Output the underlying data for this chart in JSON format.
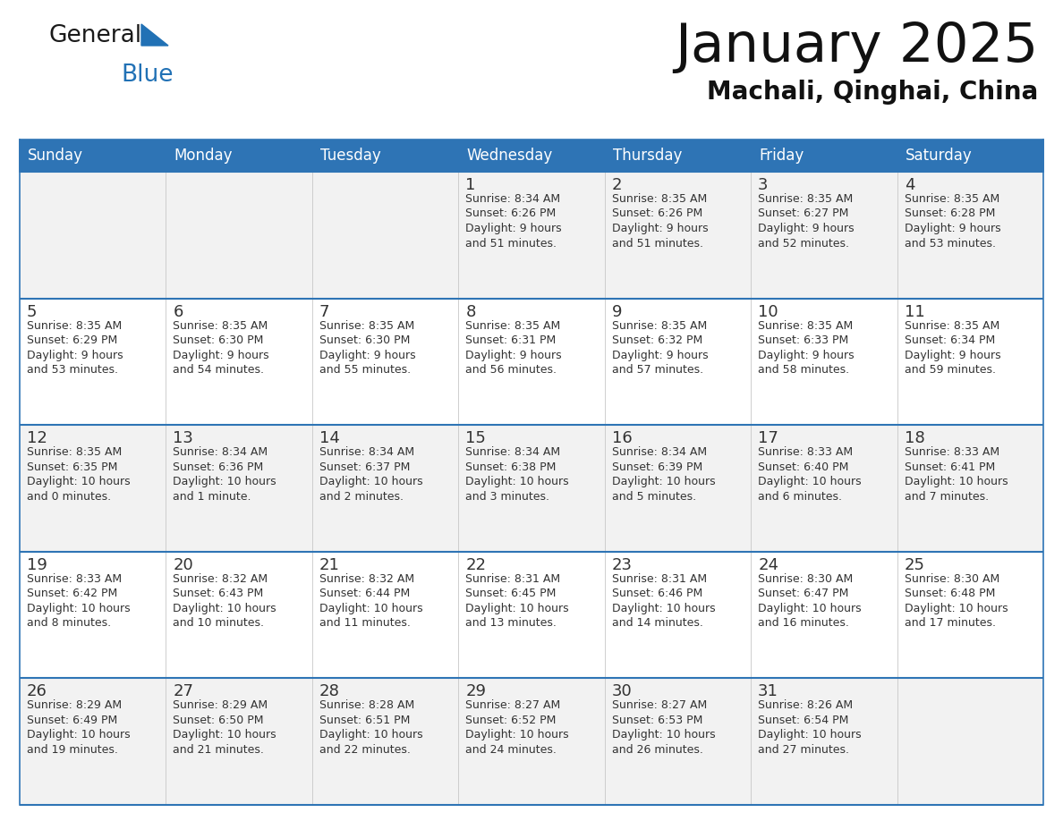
{
  "title": "January 2025",
  "subtitle": "Machali, Qinghai, China",
  "header_bg_color": "#2E74B5",
  "header_text_color": "#FFFFFF",
  "row_bg_even": "#F2F2F2",
  "row_bg_odd": "#FFFFFF",
  "border_color": "#2E74B5",
  "cell_border_color": "#AAAAAA",
  "text_color": "#333333",
  "days_of_week": [
    "Sunday",
    "Monday",
    "Tuesday",
    "Wednesday",
    "Thursday",
    "Friday",
    "Saturday"
  ],
  "calendar_data": [
    [
      {
        "day": "",
        "info": ""
      },
      {
        "day": "",
        "info": ""
      },
      {
        "day": "",
        "info": ""
      },
      {
        "day": "1",
        "info": "Sunrise: 8:34 AM\nSunset: 6:26 PM\nDaylight: 9 hours\nand 51 minutes."
      },
      {
        "day": "2",
        "info": "Sunrise: 8:35 AM\nSunset: 6:26 PM\nDaylight: 9 hours\nand 51 minutes."
      },
      {
        "day": "3",
        "info": "Sunrise: 8:35 AM\nSunset: 6:27 PM\nDaylight: 9 hours\nand 52 minutes."
      },
      {
        "day": "4",
        "info": "Sunrise: 8:35 AM\nSunset: 6:28 PM\nDaylight: 9 hours\nand 53 minutes."
      }
    ],
    [
      {
        "day": "5",
        "info": "Sunrise: 8:35 AM\nSunset: 6:29 PM\nDaylight: 9 hours\nand 53 minutes."
      },
      {
        "day": "6",
        "info": "Sunrise: 8:35 AM\nSunset: 6:30 PM\nDaylight: 9 hours\nand 54 minutes."
      },
      {
        "day": "7",
        "info": "Sunrise: 8:35 AM\nSunset: 6:30 PM\nDaylight: 9 hours\nand 55 minutes."
      },
      {
        "day": "8",
        "info": "Sunrise: 8:35 AM\nSunset: 6:31 PM\nDaylight: 9 hours\nand 56 minutes."
      },
      {
        "day": "9",
        "info": "Sunrise: 8:35 AM\nSunset: 6:32 PM\nDaylight: 9 hours\nand 57 minutes."
      },
      {
        "day": "10",
        "info": "Sunrise: 8:35 AM\nSunset: 6:33 PM\nDaylight: 9 hours\nand 58 minutes."
      },
      {
        "day": "11",
        "info": "Sunrise: 8:35 AM\nSunset: 6:34 PM\nDaylight: 9 hours\nand 59 minutes."
      }
    ],
    [
      {
        "day": "12",
        "info": "Sunrise: 8:35 AM\nSunset: 6:35 PM\nDaylight: 10 hours\nand 0 minutes."
      },
      {
        "day": "13",
        "info": "Sunrise: 8:34 AM\nSunset: 6:36 PM\nDaylight: 10 hours\nand 1 minute."
      },
      {
        "day": "14",
        "info": "Sunrise: 8:34 AM\nSunset: 6:37 PM\nDaylight: 10 hours\nand 2 minutes."
      },
      {
        "day": "15",
        "info": "Sunrise: 8:34 AM\nSunset: 6:38 PM\nDaylight: 10 hours\nand 3 minutes."
      },
      {
        "day": "16",
        "info": "Sunrise: 8:34 AM\nSunset: 6:39 PM\nDaylight: 10 hours\nand 5 minutes."
      },
      {
        "day": "17",
        "info": "Sunrise: 8:33 AM\nSunset: 6:40 PM\nDaylight: 10 hours\nand 6 minutes."
      },
      {
        "day": "18",
        "info": "Sunrise: 8:33 AM\nSunset: 6:41 PM\nDaylight: 10 hours\nand 7 minutes."
      }
    ],
    [
      {
        "day": "19",
        "info": "Sunrise: 8:33 AM\nSunset: 6:42 PM\nDaylight: 10 hours\nand 8 minutes."
      },
      {
        "day": "20",
        "info": "Sunrise: 8:32 AM\nSunset: 6:43 PM\nDaylight: 10 hours\nand 10 minutes."
      },
      {
        "day": "21",
        "info": "Sunrise: 8:32 AM\nSunset: 6:44 PM\nDaylight: 10 hours\nand 11 minutes."
      },
      {
        "day": "22",
        "info": "Sunrise: 8:31 AM\nSunset: 6:45 PM\nDaylight: 10 hours\nand 13 minutes."
      },
      {
        "day": "23",
        "info": "Sunrise: 8:31 AM\nSunset: 6:46 PM\nDaylight: 10 hours\nand 14 minutes."
      },
      {
        "day": "24",
        "info": "Sunrise: 8:30 AM\nSunset: 6:47 PM\nDaylight: 10 hours\nand 16 minutes."
      },
      {
        "day": "25",
        "info": "Sunrise: 8:30 AM\nSunset: 6:48 PM\nDaylight: 10 hours\nand 17 minutes."
      }
    ],
    [
      {
        "day": "26",
        "info": "Sunrise: 8:29 AM\nSunset: 6:49 PM\nDaylight: 10 hours\nand 19 minutes."
      },
      {
        "day": "27",
        "info": "Sunrise: 8:29 AM\nSunset: 6:50 PM\nDaylight: 10 hours\nand 21 minutes."
      },
      {
        "day": "28",
        "info": "Sunrise: 8:28 AM\nSunset: 6:51 PM\nDaylight: 10 hours\nand 22 minutes."
      },
      {
        "day": "29",
        "info": "Sunrise: 8:27 AM\nSunset: 6:52 PM\nDaylight: 10 hours\nand 24 minutes."
      },
      {
        "day": "30",
        "info": "Sunrise: 8:27 AM\nSunset: 6:53 PM\nDaylight: 10 hours\nand 26 minutes."
      },
      {
        "day": "31",
        "info": "Sunrise: 8:26 AM\nSunset: 6:54 PM\nDaylight: 10 hours\nand 27 minutes."
      },
      {
        "day": "",
        "info": ""
      }
    ]
  ],
  "logo_color_general": "#1a1a1a",
  "logo_color_blue": "#2171B5"
}
